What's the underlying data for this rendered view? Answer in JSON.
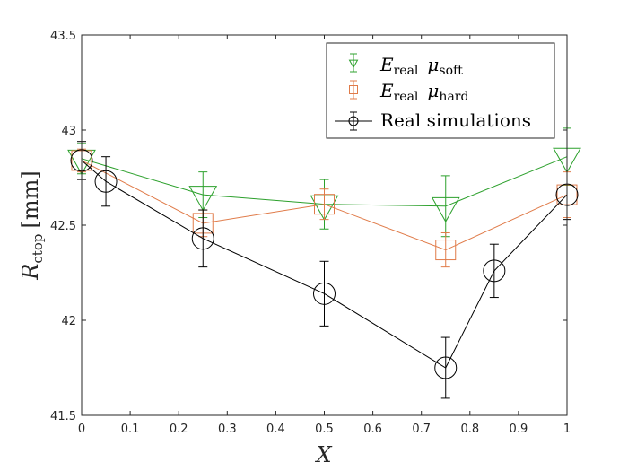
{
  "chart_data": {
    "type": "line",
    "xlabel": "X",
    "ylabel_main": "R",
    "ylabel_sub": "ctop",
    "ylabel_unit": "[mm]",
    "xlim": [
      0,
      1
    ],
    "ylim": [
      41.5,
      43.5
    ],
    "xticks": [
      0,
      0.1,
      0.2,
      0.3,
      0.4,
      0.5,
      0.6,
      0.7,
      0.8,
      0.9,
      1
    ],
    "xtick_labels": [
      "0",
      "0.1",
      "0.2",
      "0.3",
      "0.4",
      "0.5",
      "0.6",
      "0.7",
      "0.8",
      "0.9",
      "1"
    ],
    "yticks": [
      41.5,
      42,
      42.5,
      43,
      43.5
    ],
    "ytick_labels": [
      "41.5",
      "42",
      "42.5",
      "43",
      "43.5"
    ],
    "grid": false,
    "legend_position": "top-right",
    "series": [
      {
        "name": "E_real mu_soft",
        "legend_main": "E",
        "legend_sub": "real",
        "legend_mu": "μ",
        "legend_mu_sub": "soft",
        "marker": "triangle-down",
        "color": "#2ca02c",
        "x": [
          0,
          0.25,
          0.5,
          0.75,
          1
        ],
        "y": [
          42.85,
          42.66,
          42.61,
          42.6,
          42.86
        ],
        "err": [
          0.08,
          0.12,
          0.13,
          0.16,
          0.15
        ]
      },
      {
        "name": "E_real mu_hard",
        "legend_main": "E",
        "legend_sub": "real",
        "legend_mu": "μ",
        "legend_mu_sub": "hard",
        "marker": "square",
        "color": "#e07b49",
        "x": [
          0,
          0.25,
          0.5,
          0.75,
          1
        ],
        "y": [
          42.84,
          42.51,
          42.61,
          42.37,
          42.66
        ],
        "err": [
          0.06,
          0.07,
          0.08,
          0.09,
          0.12
        ]
      },
      {
        "name": "Real simulations",
        "legend_text": "Real simulations",
        "marker": "circle",
        "color": "#000000",
        "x": [
          0,
          0.05,
          0.25,
          0.5,
          0.75,
          0.85,
          1
        ],
        "y": [
          42.84,
          42.73,
          42.43,
          42.14,
          41.75,
          42.26,
          42.66
        ],
        "err": [
          0.1,
          0.13,
          0.15,
          0.17,
          0.16,
          0.14,
          0.13
        ]
      }
    ]
  }
}
